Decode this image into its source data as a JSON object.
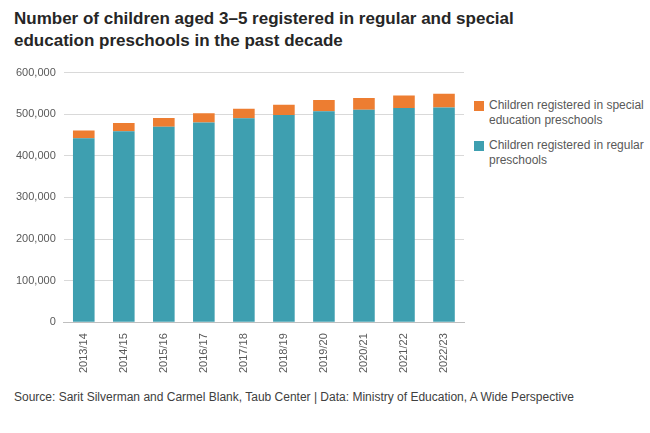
{
  "chart_data": {
    "type": "bar",
    "title": "Number of children aged 3–5 registered in regular and special education preschools in the past decade",
    "categories": [
      "2013/14",
      "2014/15",
      "2015/16",
      "2016/17",
      "2017/18",
      "2018/19",
      "2019/20",
      "2020/21",
      "2021/22",
      "2022/23"
    ],
    "series": [
      {
        "name": "Children registered in regular preschools",
        "color": "#3e9fb0",
        "values": [
          442000,
          459000,
          470000,
          480000,
          490000,
          498000,
          507000,
          511000,
          515000,
          516000
        ]
      },
      {
        "name": "Children registered in special education preschools",
        "color": "#ed7d31",
        "values": [
          19000,
          20000,
          21000,
          22000,
          23000,
          25000,
          27000,
          28000,
          30000,
          33000
        ]
      }
    ],
    "ylim": [
      0,
      600000
    ],
    "yticks": [
      0,
      {
        "value": 100000,
        "label": "100,000"
      },
      {
        "value": 200000,
        "label": "200,000"
      },
      {
        "value": 300000,
        "label": "300,000"
      },
      {
        "value": 400000,
        "label": "400,000"
      },
      {
        "value": 500000,
        "label": "500,000"
      },
      {
        "value": 600000,
        "label": "600,000"
      }
    ],
    "stacked": true,
    "grid": true,
    "legend": "right",
    "source": "Source: Sarit Silverman and Carmel Blank, Taub Center | Data: Ministry of Education, A Wide Perspective"
  }
}
